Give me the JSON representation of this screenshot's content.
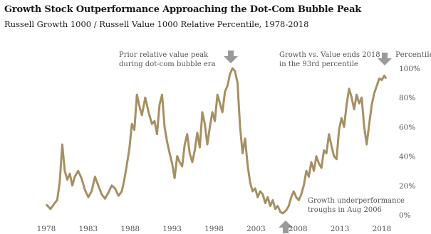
{
  "chart_data": {
    "type": "line",
    "title": "Growth Stock Outperformance Approaching the Dot-Com Bubble Peak",
    "subtitle": "Russell Growth 1000 / Russell Value 1000 Relative Percentile, 1978-2018",
    "ylabel": "Percentile",
    "xlim": [
      1978,
      2018.6
    ],
    "ylim": [
      0,
      100
    ],
    "x_ticks": [
      "1978",
      "1983",
      "1988",
      "1993",
      "1998",
      "2003",
      "2008",
      "2013",
      "2018"
    ],
    "y_ticks": [
      "0%",
      "20%",
      "40%",
      "60%",
      "80%",
      "100%"
    ],
    "line_color": "#a69063",
    "arrow_color": "#9a9a9a",
    "series": [
      {
        "name": "",
        "x": [
          1978.0,
          1978.5,
          1979.0,
          1979.3,
          1979.6,
          1979.9,
          1980.2,
          1980.5,
          1980.8,
          1981.1,
          1981.4,
          1981.8,
          1982.2,
          1982.6,
          1983.0,
          1983.4,
          1983.8,
          1984.2,
          1984.6,
          1985.0,
          1985.4,
          1985.8,
          1986.2,
          1986.6,
          1987.0,
          1987.3,
          1987.6,
          1987.9,
          1988.2,
          1988.5,
          1988.8,
          1989.1,
          1989.4,
          1989.8,
          1990.2,
          1990.6,
          1990.9,
          1991.2,
          1991.5,
          1991.8,
          1992.1,
          1992.4,
          1992.7,
          1993.0,
          1993.3,
          1993.6,
          1993.9,
          1994.2,
          1994.5,
          1994.8,
          1995.1,
          1995.4,
          1995.7,
          1996.0,
          1996.3,
          1996.6,
          1996.9,
          1997.2,
          1997.5,
          1997.8,
          1998.1,
          1998.4,
          1998.7,
          1999.0,
          1999.3,
          1999.6,
          1999.9,
          2000.2,
          2000.5,
          2000.8,
          2001.1,
          2001.4,
          2001.7,
          2002.0,
          2002.3,
          2002.6,
          2002.9,
          2003.2,
          2003.5,
          2003.8,
          2004.1,
          2004.4,
          2004.7,
          2005.0,
          2005.3,
          2005.6,
          2005.9,
          2006.2,
          2006.6,
          2006.9,
          2007.2,
          2007.5,
          2007.8,
          2008.1,
          2008.4,
          2008.7,
          2009.0,
          2009.3,
          2009.6,
          2009.9,
          2010.2,
          2010.5,
          2010.8,
          2011.1,
          2011.4,
          2011.7,
          2012.0,
          2012.3,
          2012.6,
          2012.9,
          2013.2,
          2013.5,
          2013.8,
          2014.1,
          2014.4,
          2014.7,
          2015.0,
          2015.3,
          2015.6,
          2015.9,
          2016.2,
          2016.5,
          2016.8,
          2017.1,
          2017.4,
          2017.7,
          2018.0,
          2018.3,
          2018.5
        ],
        "values": [
          7,
          4,
          8,
          10,
          22,
          48,
          30,
          24,
          28,
          20,
          26,
          30,
          25,
          17,
          12,
          16,
          26,
          20,
          14,
          11,
          15,
          20,
          18,
          13,
          16,
          24,
          34,
          45,
          62,
          58,
          82,
          74,
          68,
          80,
          70,
          62,
          64,
          55,
          75,
          82,
          60,
          50,
          42,
          35,
          25,
          40,
          36,
          33,
          48,
          55,
          42,
          36,
          44,
          56,
          46,
          70,
          62,
          48,
          60,
          70,
          64,
          82,
          76,
          70,
          84,
          88,
          96,
          100,
          98,
          90,
          60,
          42,
          52,
          34,
          22,
          16,
          18,
          12,
          16,
          14,
          8,
          12,
          6,
          10,
          4,
          6,
          2,
          1,
          3,
          6,
          12,
          16,
          12,
          10,
          14,
          20,
          30,
          26,
          36,
          30,
          40,
          35,
          32,
          44,
          42,
          55,
          47,
          40,
          38,
          58,
          66,
          60,
          75,
          86,
          80,
          72,
          82,
          76,
          80,
          60,
          48,
          62,
          75,
          83,
          88,
          93,
          92,
          95,
          93
        ]
      }
    ],
    "annotations": [
      {
        "lines": [
          "Prior relative value peak",
          "during dot-com bubble era"
        ]
      },
      {
        "lines": [
          "Growth vs. Value ends 2018",
          "in the 93rd percentile"
        ]
      },
      {
        "lines": [
          "Growth underperformance",
          "troughs in Aug 2006"
        ]
      }
    ]
  }
}
